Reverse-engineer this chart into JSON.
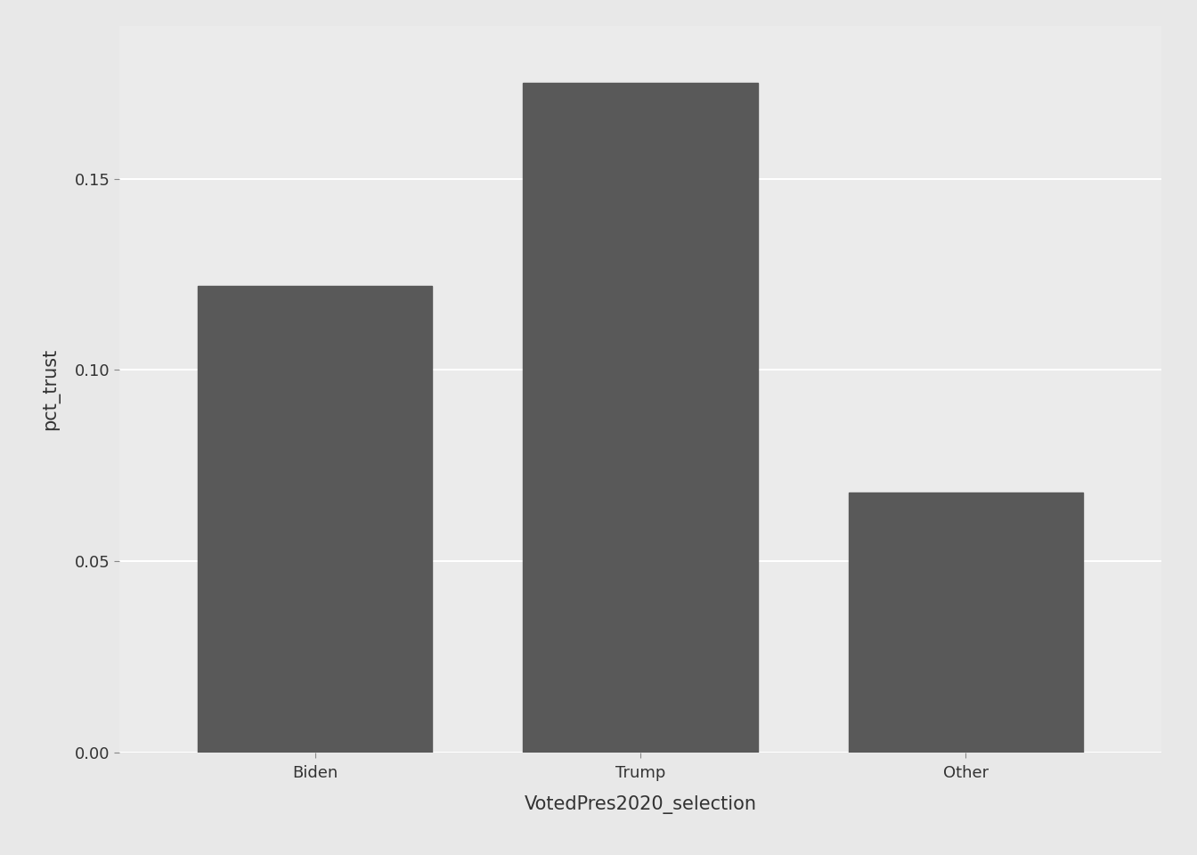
{
  "categories": [
    "Biden",
    "Trump",
    "Other"
  ],
  "values": [
    0.122,
    0.175,
    0.068
  ],
  "bar_color": "#595959",
  "outer_background": "#E8E8E8",
  "panel_background": "#EBEBEB",
  "grid_color": "#FFFFFF",
  "xlabel": "VotedPres2020_selection",
  "ylabel": "pct_trust",
  "yticks": [
    0.0,
    0.05,
    0.1,
    0.15
  ],
  "ylim": [
    0,
    0.19
  ],
  "title": "",
  "xlabel_fontsize": 15,
  "ylabel_fontsize": 15,
  "tick_fontsize": 13,
  "bar_width": 0.72
}
